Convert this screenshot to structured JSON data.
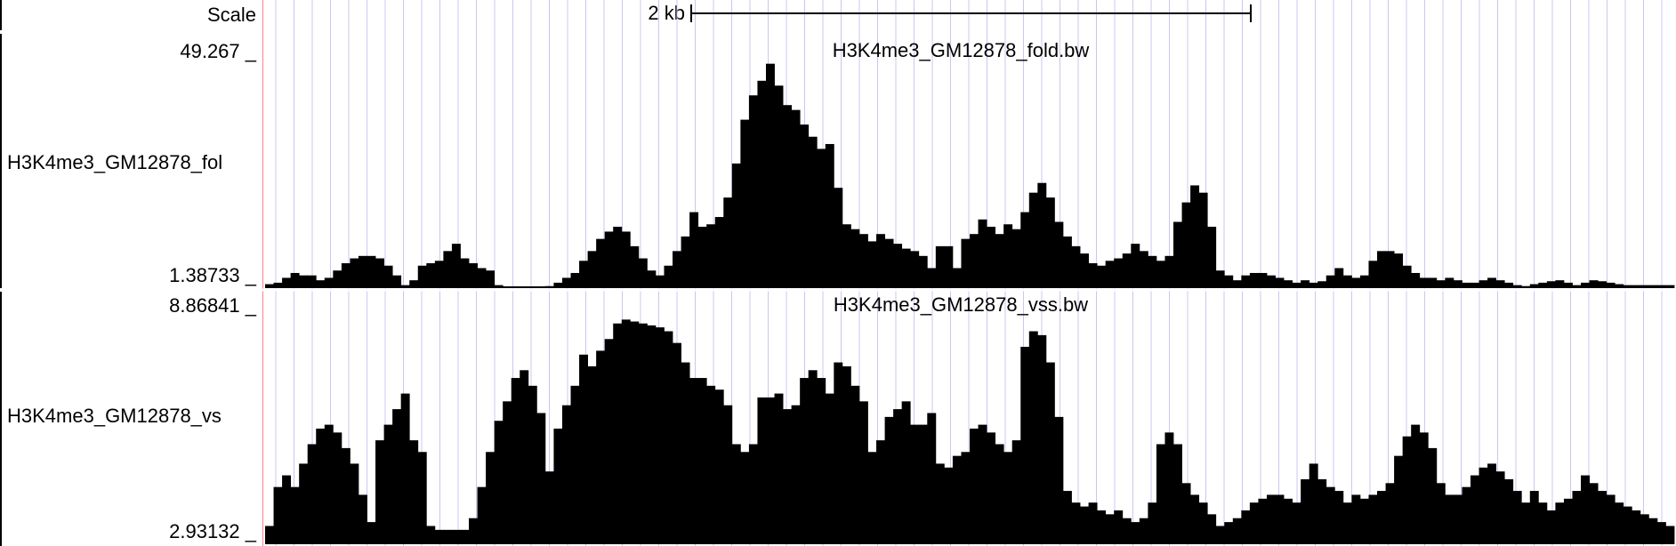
{
  "scale_bar": {
    "label": "Scale",
    "length_label": "2 kb"
  },
  "colors": {
    "grid": "#c8c8f0",
    "signal": "#000000",
    "edge": "#ff8080",
    "background": "#ffffff"
  },
  "tracks": [
    {
      "title": "H3K4me3_GM12878_fold.bw",
      "short_label": "H3K4me3_GM12878_fol",
      "max_label": "49.267 _",
      "min_label": "1.38733 _"
    },
    {
      "title": "H3K4me3_GM12878_vss.bw",
      "short_label": "H3K4me3_GM12878_vs",
      "max_label": "8.86841 _",
      "min_label": "2.93132 _"
    }
  ],
  "chart_data": [
    {
      "type": "area",
      "title": "H3K4me3_GM12878_fold.bw",
      "xlabel": "",
      "ylabel": "",
      "ylim": [
        1.38733,
        49.267
      ],
      "grid": true,
      "x": [
        0,
        1,
        2,
        3,
        4,
        5,
        6,
        7,
        8,
        9,
        10,
        11,
        12,
        13,
        14,
        15,
        16,
        17,
        18,
        19,
        20,
        21,
        22,
        23,
        24,
        25,
        26,
        27,
        28,
        29,
        30,
        31,
        32,
        33,
        34,
        35,
        36,
        37,
        38,
        39,
        40,
        41,
        42,
        43,
        44,
        45,
        46,
        47,
        48,
        49,
        50,
        51,
        52,
        53,
        54,
        55,
        56,
        57,
        58,
        59,
        60,
        61,
        62,
        63,
        64,
        65,
        66,
        67,
        68,
        69,
        70,
        71,
        72,
        73,
        74,
        75,
        76,
        77,
        78,
        79,
        80,
        81,
        82,
        83,
        84,
        85,
        86,
        87,
        88,
        89,
        90,
        91,
        92,
        93,
        94,
        95,
        96,
        97,
        98,
        99,
        100,
        101,
        102,
        103,
        104,
        105,
        106,
        107,
        108,
        109,
        110,
        111,
        112,
        113,
        114,
        115,
        116,
        117,
        118,
        119,
        120,
        121,
        122,
        123,
        124,
        125,
        126,
        127,
        128,
        129,
        130,
        131,
        132,
        133,
        134,
        135,
        136,
        137,
        138,
        139,
        140,
        141,
        142,
        143,
        144,
        145,
        146,
        147,
        148,
        149,
        150,
        151,
        152,
        153,
        154,
        155,
        156,
        157,
        158,
        159,
        160,
        161,
        162,
        163,
        164,
        165
      ],
      "values": [
        2.2,
        2.5,
        3.5,
        4.5,
        4.0,
        4.0,
        3.0,
        3.5,
        5.0,
        6.5,
        7.5,
        8.0,
        8.0,
        7.5,
        6.0,
        4.0,
        2.0,
        3.0,
        6.0,
        6.5,
        7.0,
        9.0,
        10.5,
        7.5,
        6.5,
        5.5,
        5.0,
        2.0,
        1.6,
        1.6,
        1.6,
        1.6,
        1.6,
        1.8,
        2.5,
        3.5,
        4.5,
        7.0,
        9.0,
        11.5,
        13.0,
        14.0,
        13.0,
        10.0,
        7.5,
        5.0,
        4.0,
        6.0,
        9.0,
        12.0,
        17.0,
        14.0,
        14.5,
        16.0,
        20.0,
        27.0,
        36.0,
        41.0,
        44.0,
        47.5,
        43.0,
        39.0,
        38.0,
        35.0,
        32.5,
        30.0,
        31.0,
        22.0,
        14.5,
        13.5,
        12.5,
        11.0,
        12.5,
        11.5,
        10.5,
        9.5,
        9.0,
        8.0,
        5.5,
        10.0,
        10.0,
        5.5,
        11.5,
        12.5,
        15.5,
        14.0,
        12.5,
        14.5,
        13.5,
        17.0,
        21.0,
        23.0,
        20.0,
        15.0,
        12.0,
        10.0,
        8.5,
        6.5,
        6.0,
        7.0,
        7.5,
        8.5,
        10.5,
        9.0,
        8.0,
        7.0,
        8.0,
        15.0,
        19.0,
        22.5,
        21.0,
        14.0,
        5.0,
        4.0,
        3.0,
        4.0,
        4.5,
        4.5,
        4.0,
        3.5,
        3.0,
        2.5,
        3.0,
        2.5,
        2.8,
        4.0,
        5.5,
        4.0,
        3.5,
        4.0,
        7.0,
        9.0,
        9.0,
        8.5,
        6.0,
        4.5,
        3.5,
        3.5,
        3.0,
        3.5,
        3.0,
        2.5,
        2.5,
        3.0,
        3.5,
        3.0,
        2.5,
        2.0,
        1.8,
        2.2,
        2.5,
        2.8,
        3.0,
        2.5,
        2.0,
        2.5,
        3.0,
        2.8,
        2.5,
        2.2,
        2.0,
        2.0,
        2.0,
        2.0,
        2.0,
        2.0
      ]
    },
    {
      "type": "area",
      "title": "H3K4me3_GM12878_vss.bw",
      "xlabel": "",
      "ylabel": "",
      "ylim": [
        2.93132,
        8.86841
      ],
      "grid": true,
      "x": [
        0,
        1,
        2,
        3,
        4,
        5,
        6,
        7,
        8,
        9,
        10,
        11,
        12,
        13,
        14,
        15,
        16,
        17,
        18,
        19,
        20,
        21,
        22,
        23,
        24,
        25,
        26,
        27,
        28,
        29,
        30,
        31,
        32,
        33,
        34,
        35,
        36,
        37,
        38,
        39,
        40,
        41,
        42,
        43,
        44,
        45,
        46,
        47,
        48,
        49,
        50,
        51,
        52,
        53,
        54,
        55,
        56,
        57,
        58,
        59,
        60,
        61,
        62,
        63,
        64,
        65,
        66,
        67,
        68,
        69,
        70,
        71,
        72,
        73,
        74,
        75,
        76,
        77,
        78,
        79,
        80,
        81,
        82,
        83,
        84,
        85,
        86,
        87,
        88,
        89,
        90,
        91,
        92,
        93,
        94,
        95,
        96,
        97,
        98,
        99,
        100,
        101,
        102,
        103,
        104,
        105,
        106,
        107,
        108,
        109,
        110,
        111,
        112,
        113,
        114,
        115,
        116,
        117,
        118,
        119,
        120,
        121,
        122,
        123,
        124,
        125,
        126,
        127,
        128,
        129,
        130,
        131,
        132,
        133,
        134,
        135,
        136,
        137,
        138,
        139,
        140,
        141,
        142,
        143,
        144,
        145,
        146,
        147,
        148,
        149,
        150,
        151,
        152,
        153,
        154,
        155,
        156,
        157,
        158,
        159,
        160,
        161,
        162,
        163,
        164,
        165
      ],
      "values": [
        3.4,
        4.4,
        4.7,
        4.4,
        5.0,
        5.5,
        5.9,
        6.0,
        5.8,
        5.4,
        5.0,
        4.2,
        3.5,
        5.6,
        6.0,
        6.4,
        6.8,
        5.6,
        5.3,
        3.4,
        3.3,
        3.3,
        3.3,
        3.3,
        3.6,
        4.4,
        5.3,
        6.1,
        6.6,
        7.2,
        7.4,
        7.0,
        6.3,
        4.8,
        5.9,
        6.5,
        7.0,
        7.8,
        7.5,
        7.9,
        8.2,
        8.6,
        8.7,
        8.65,
        8.6,
        8.55,
        8.5,
        8.4,
        8.1,
        7.6,
        7.2,
        7.2,
        7.0,
        6.9,
        6.5,
        5.5,
        5.3,
        5.5,
        6.7,
        6.7,
        6.8,
        6.4,
        6.5,
        7.2,
        7.4,
        7.2,
        6.8,
        7.6,
        7.5,
        7.0,
        6.6,
        5.3,
        5.6,
        6.2,
        6.4,
        6.6,
        6.0,
        6.0,
        6.3,
        5.0,
        4.9,
        5.2,
        5.3,
        5.9,
        6.0,
        5.8,
        5.5,
        5.3,
        5.6,
        8.0,
        8.4,
        8.3,
        7.6,
        6.2,
        4.3,
        4.0,
        3.9,
        4.0,
        3.8,
        3.7,
        3.8,
        3.6,
        3.5,
        3.6,
        4.0,
        5.5,
        5.8,
        5.5,
        4.5,
        4.2,
        4.0,
        3.7,
        3.4,
        3.5,
        3.6,
        3.8,
        4.0,
        4.1,
        4.2,
        4.2,
        4.1,
        4.0,
        4.6,
        5.0,
        4.6,
        4.4,
        4.3,
        4.0,
        4.2,
        4.1,
        4.2,
        4.3,
        4.5,
        5.2,
        5.7,
        6.0,
        5.8,
        5.4,
        4.5,
        4.2,
        4.2,
        4.4,
        4.7,
        4.9,
        5.0,
        4.8,
        4.6,
        4.3,
        4.0,
        4.3,
        4.0,
        3.8,
        4.0,
        4.1,
        4.3,
        4.7,
        4.5,
        4.3,
        4.2,
        4.0,
        3.9,
        3.8,
        3.7,
        3.6,
        3.5,
        3.4
      ]
    }
  ]
}
